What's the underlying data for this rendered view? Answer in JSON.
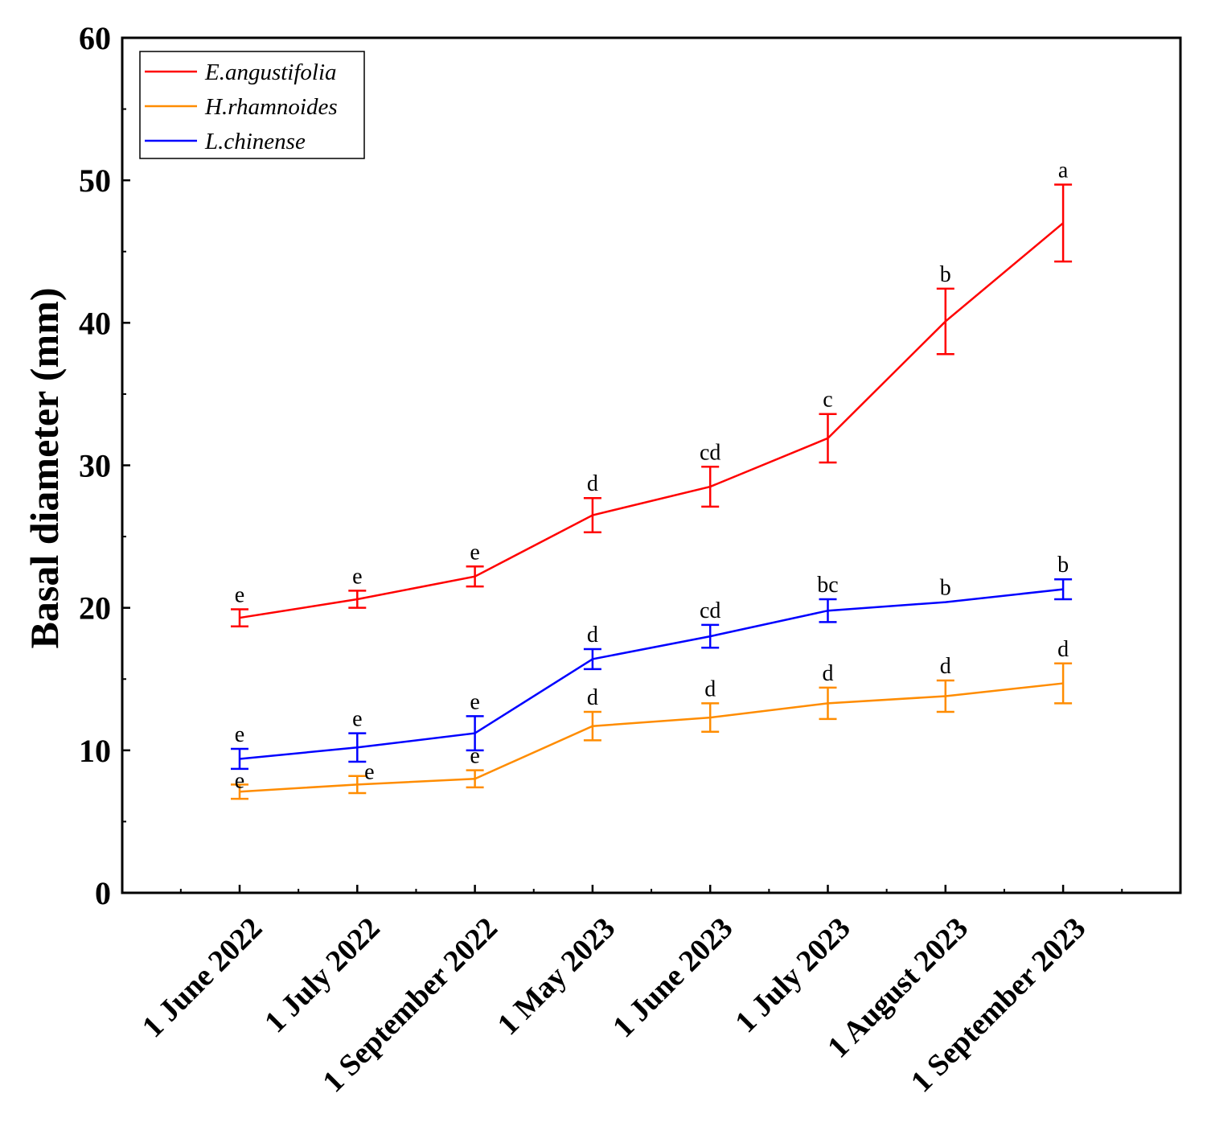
{
  "chart_data": {
    "type": "line",
    "title": "",
    "xlabel": "",
    "ylabel": "Basal diameter (mm)",
    "ylim": [
      0,
      60
    ],
    "yticks": [
      0,
      10,
      20,
      30,
      40,
      50,
      60
    ],
    "categories": [
      "1 June 2022",
      "1 July 2022",
      "1 September 2022",
      "1 May 2023",
      "1 June 2023",
      "1 July 2023",
      "1 August 2023",
      "1 September 2023"
    ],
    "legend_position": "top-left",
    "series": [
      {
        "name": "E.angustifolia",
        "color": "#ff0000",
        "values": [
          19.3,
          20.6,
          22.2,
          26.5,
          28.5,
          31.9,
          40.1,
          47.0
        ],
        "errors": [
          0.6,
          0.6,
          0.7,
          1.2,
          1.4,
          1.7,
          2.3,
          2.7
        ],
        "labels": [
          "e",
          "e",
          "e",
          "d",
          "cd",
          "c",
          "b",
          "a"
        ]
      },
      {
        "name": "H.rhamnoides",
        "color": "#ff8c00",
        "values": [
          7.1,
          7.6,
          8.0,
          11.7,
          12.3,
          13.3,
          13.8,
          14.7
        ],
        "errors": [
          0.5,
          0.6,
          0.6,
          1.0,
          1.0,
          1.1,
          1.1,
          1.4
        ],
        "labels": [
          "e",
          "e",
          "e",
          "d",
          "d",
          "d",
          "d",
          "d"
        ]
      },
      {
        "name": "L.chinense",
        "color": "#0000ff",
        "values": [
          9.4,
          10.2,
          11.2,
          16.4,
          18.0,
          19.8,
          20.4,
          21.3
        ],
        "errors": [
          0.7,
          1.0,
          1.2,
          0.7,
          0.8,
          0.8,
          0.0,
          0.7
        ],
        "labels": [
          "e",
          "e",
          "e",
          "d",
          "cd",
          "bc",
          "b",
          "b"
        ]
      }
    ]
  }
}
